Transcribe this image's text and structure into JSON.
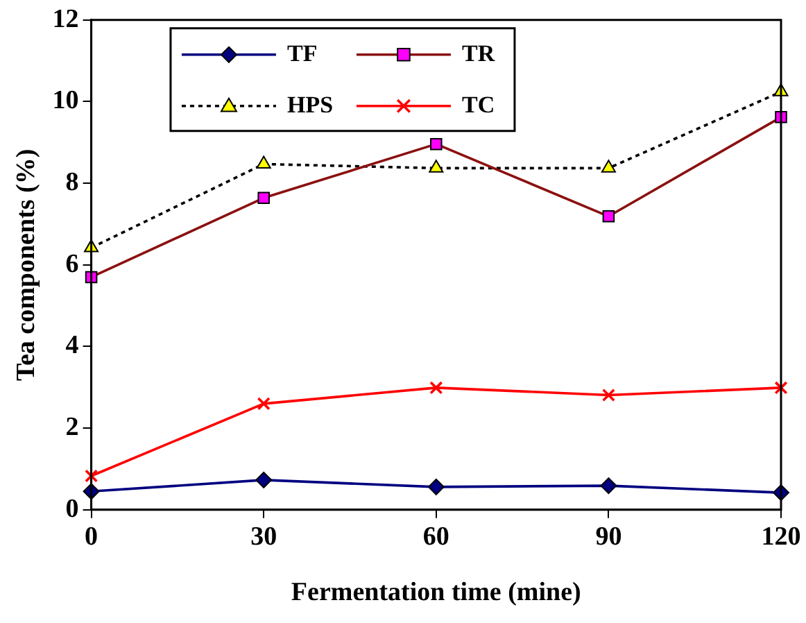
{
  "chart_data": {
    "type": "line",
    "xlabel": "Fermentation time (mine)",
    "ylabel": "Tea components (%)",
    "x": [
      0,
      30,
      60,
      90,
      120
    ],
    "xlim": [
      0,
      120
    ],
    "xticks": [
      0,
      30,
      60,
      90,
      120
    ],
    "ylim": [
      0,
      12
    ],
    "yticks": [
      0,
      2,
      4,
      6,
      8,
      10,
      12
    ],
    "grid": false,
    "legend": "top",
    "series": [
      {
        "name": "TF",
        "color": "#000080",
        "marker": "diamond",
        "colors": [
          "#000080",
          "#000080",
          "#000080",
          "#000080",
          "#000080"
        ],
        "line_style": "solid",
        "values": [
          0.45,
          0.73,
          0.56,
          0.59,
          0.42
        ]
      },
      {
        "name": "TR",
        "color": "#8b1010",
        "marker": "square",
        "colors": [
          "#ff00ff",
          "#ff00ff",
          "#ff00ff",
          "#ff00ff",
          "#ff00ff"
        ],
        "line_style": "solid",
        "values": [
          5.7,
          7.64,
          8.96,
          7.19,
          9.62
        ]
      },
      {
        "name": "HPS",
        "color": "#000000",
        "marker": "triangle",
        "colors": [
          "#ffff00",
          "#ffff00",
          "#ffff00",
          "#ffff00",
          "#ffff00"
        ],
        "line_style": "dotted",
        "values": [
          6.42,
          8.47,
          8.37,
          8.37,
          10.24
        ]
      },
      {
        "name": "TC",
        "color": "#ff0000",
        "marker": "cross",
        "colors": [
          "#ff0000",
          "#ff0000",
          "#ff0000",
          "#ff0000",
          "#ff0000"
        ],
        "line_style": "solid",
        "values": [
          0.83,
          2.6,
          2.99,
          2.81,
          2.99
        ]
      }
    ]
  }
}
